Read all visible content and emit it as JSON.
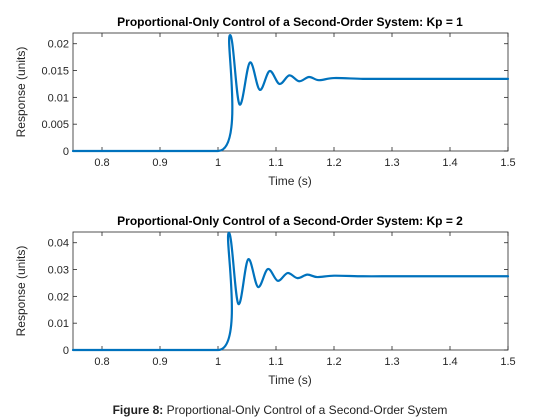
{
  "caption": {
    "label": "Figure 8:",
    "text": "Proportional-Only Control of a Second-Order System"
  },
  "colors": {
    "line": "#0072bd",
    "axes": "#262626",
    "background": "#ffffff"
  },
  "chart_data": [
    {
      "type": "line",
      "title": "Proportional-Only Control of a Second-Order System: Kp = 1",
      "xlabel": "Time (s)",
      "ylabel": "Response (units)",
      "xlim": [
        0.75,
        1.5
      ],
      "ylim": [
        0,
        0.022
      ],
      "xticks": [
        0.8,
        0.9,
        1,
        1.1,
        1.2,
        1.3,
        1.4,
        1.5
      ],
      "xtick_labels": [
        "0.8",
        "0.9",
        "1",
        "1.1",
        "1.2",
        "1.3",
        "1.4",
        "1.5"
      ],
      "yticks": [
        0,
        0.005,
        0.01,
        0.015,
        0.02
      ],
      "ytick_labels": [
        "0",
        "0.005",
        "0.01",
        "0.015",
        "0.02"
      ],
      "grid": false,
      "series": [
        {
          "x": [
            0.75,
            1.0,
            1.02,
            1.037,
            1.055,
            1.072,
            1.089,
            1.106,
            1.123,
            1.14,
            1.157,
            1.174,
            1.2,
            1.25,
            1.3,
            1.4,
            1.5
          ],
          "y": [
            0,
            0,
            0.0215,
            0.0087,
            0.0165,
            0.0114,
            0.0149,
            0.0125,
            0.0141,
            0.013,
            0.0138,
            0.0132,
            0.0136,
            0.01345,
            0.01345,
            0.01345,
            0.01345
          ]
        }
      ]
    },
    {
      "type": "line",
      "title": "Proportional-Only Control of a Second-Order System: Kp = 2",
      "xlabel": "Time (s)",
      "ylabel": "Response (units)",
      "xlim": [
        0.75,
        1.5
      ],
      "ylim": [
        0,
        0.044
      ],
      "xticks": [
        0.8,
        0.9,
        1,
        1.1,
        1.2,
        1.3,
        1.4,
        1.5
      ],
      "xtick_labels": [
        "0.8",
        "0.9",
        "1",
        "1.1",
        "1.2",
        "1.3",
        "1.4",
        "1.5"
      ],
      "yticks": [
        0,
        0.01,
        0.02,
        0.03,
        0.04
      ],
      "ytick_labels": [
        "0",
        "0.01",
        "0.02",
        "0.03",
        "0.04"
      ],
      "grid": false,
      "series": [
        {
          "x": [
            0.75,
            1.0,
            1.018,
            1.035,
            1.052,
            1.069,
            1.086,
            1.103,
            1.12,
            1.137,
            1.154,
            1.171,
            1.2,
            1.25,
            1.3,
            1.4,
            1.5
          ],
          "y": [
            0,
            0,
            0.0435,
            0.0172,
            0.0338,
            0.0235,
            0.0302,
            0.0258,
            0.0287,
            0.0268,
            0.0281,
            0.0272,
            0.0277,
            0.0275,
            0.0275,
            0.0275,
            0.0275
          ]
        }
      ]
    }
  ]
}
